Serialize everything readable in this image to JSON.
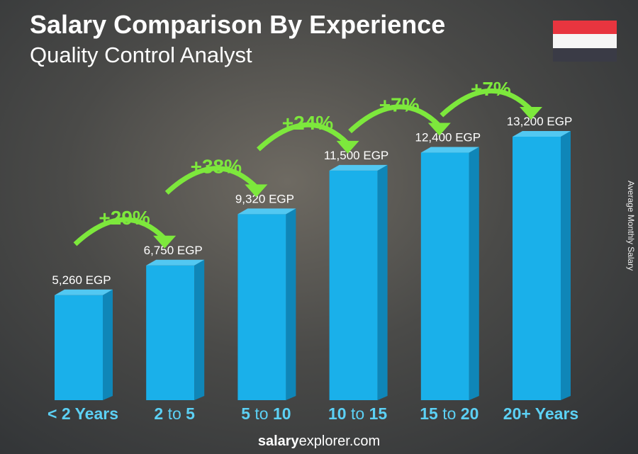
{
  "header": {
    "title": "Salary Comparison By Experience",
    "subtitle": "Quality Control Analyst"
  },
  "flag": {
    "colors": [
      "#e8353f",
      "#f5f5f5",
      "#3a3b46"
    ],
    "emblem_color": "#e0a000"
  },
  "footer": {
    "bold": "salary",
    "regular": "explorer.com"
  },
  "chart_data": {
    "type": "bar",
    "title": "Salary Comparison By Experience",
    "subtitle": "Quality Control Analyst",
    "ylabel": "Average Monthly Salary",
    "categories": [
      [
        "<",
        " 2 Years",
        ""
      ],
      [
        "2",
        " to ",
        "5"
      ],
      [
        "5",
        " to ",
        "10"
      ],
      [
        "10",
        " to ",
        "15"
      ],
      [
        "15",
        " to ",
        "20"
      ],
      [
        "20+ Years",
        "",
        ""
      ]
    ],
    "category_labels": [
      "< 2 Years",
      "2 to 5",
      "5 to 10",
      "10 to 15",
      "15 to 20",
      "20+ Years"
    ],
    "values": [
      5260,
      6750,
      9320,
      11500,
      12400,
      13200
    ],
    "value_labels": [
      "5,260 EGP",
      "6,750 EGP",
      "9,320 EGP",
      "11,500 EGP",
      "12,400 EGP",
      "13,200 EGP"
    ],
    "changes": [
      "+29%",
      "+38%",
      "+24%",
      "+7%",
      "+7%"
    ],
    "bar_color": "#1ab0ea",
    "change_color": "#7de83c",
    "label_color": "#5cd1f5"
  }
}
